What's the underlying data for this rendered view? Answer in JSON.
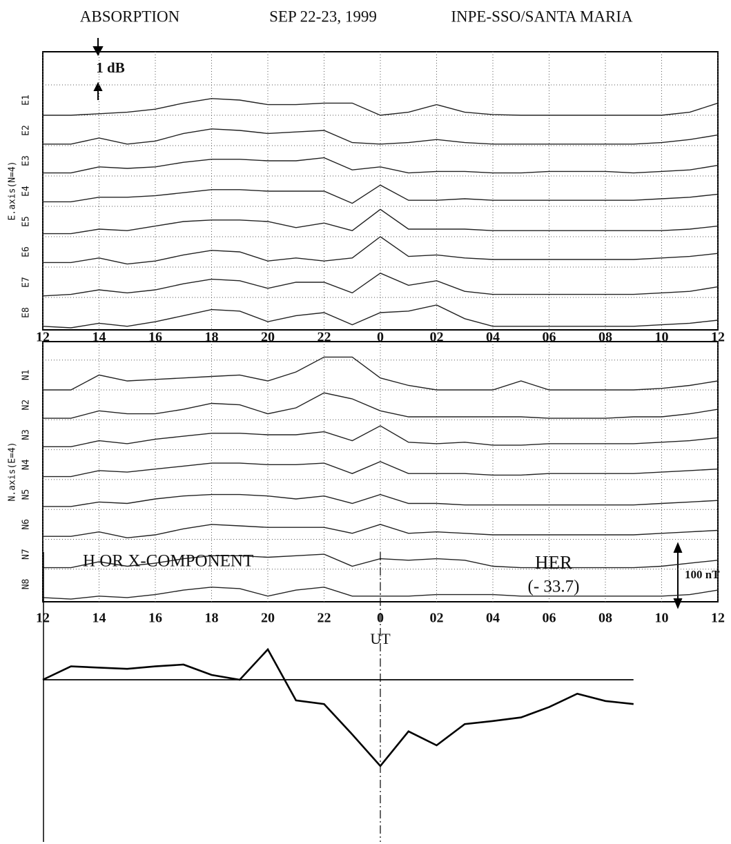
{
  "header": {
    "left": "ABSORPTION",
    "center": "SEP 22-23, 1999",
    "right": "INPE-SSO/SANTA MARIA"
  },
  "chart_data": [
    {
      "type": "line",
      "ylabel": "E.axis(N=4)",
      "annotation": "1 dB",
      "x": [
        12,
        13,
        14,
        15,
        16,
        17,
        18,
        19,
        20,
        21,
        22,
        23,
        24,
        25,
        26,
        27,
        28,
        29,
        30,
        31,
        32,
        33,
        34,
        35,
        36
      ],
      "xlim": [
        12,
        36
      ],
      "xticks": [
        12,
        14,
        16,
        18,
        20,
        22,
        {
          "value": 24,
          "label": "0"
        },
        {
          "value": 26,
          "label": "02"
        },
        {
          "value": 28,
          "label": "04"
        },
        {
          "value": 30,
          "label": "06"
        },
        {
          "value": 32,
          "label": "08"
        },
        {
          "value": 34,
          "label": "10"
        },
        {
          "value": 36,
          "label": "12"
        }
      ],
      "grid": true,
      "series": [
        {
          "name": "E1",
          "color": "#222",
          "values": [
            0,
            0,
            0.05,
            0.1,
            0.2,
            0.4,
            0.55,
            0.5,
            0.35,
            0.35,
            0.4,
            0.4,
            0,
            0.1,
            0.35,
            0.1,
            0.02,
            0,
            0,
            0,
            0,
            0,
            0,
            0.1,
            0.4
          ]
        },
        {
          "name": "E2",
          "color": "#222",
          "values": [
            0.05,
            0.05,
            0.25,
            0.05,
            0.15,
            0.4,
            0.55,
            0.5,
            0.4,
            0.45,
            0.5,
            0.1,
            0.05,
            0.1,
            0.2,
            0.1,
            0.05,
            0.05,
            0.05,
            0.05,
            0.05,
            0.05,
            0.1,
            0.2,
            0.35
          ]
        },
        {
          "name": "E3",
          "color": "#222",
          "values": [
            0.1,
            0.1,
            0.3,
            0.25,
            0.3,
            0.45,
            0.55,
            0.55,
            0.5,
            0.5,
            0.6,
            0.2,
            0.3,
            0.1,
            0.15,
            0.15,
            0.1,
            0.1,
            0.15,
            0.15,
            0.15,
            0.1,
            0.15,
            0.2,
            0.35
          ]
        },
        {
          "name": "E4",
          "color": "#222",
          "values": [
            0.15,
            0.15,
            0.3,
            0.3,
            0.35,
            0.45,
            0.55,
            0.55,
            0.5,
            0.5,
            0.5,
            0.1,
            0.7,
            0.2,
            0.2,
            0.25,
            0.2,
            0.2,
            0.2,
            0.2,
            0.2,
            0.2,
            0.25,
            0.3,
            0.4
          ]
        },
        {
          "name": "E5",
          "color": "#222",
          "values": [
            0.1,
            0.1,
            0.25,
            0.2,
            0.35,
            0.5,
            0.55,
            0.55,
            0.5,
            0.3,
            0.45,
            0.2,
            0.9,
            0.25,
            0.25,
            0.25,
            0.2,
            0.2,
            0.2,
            0.2,
            0.2,
            0.2,
            0.2,
            0.25,
            0.35
          ]
        },
        {
          "name": "E6",
          "color": "#222",
          "values": [
            0.15,
            0.15,
            0.3,
            0.1,
            0.2,
            0.4,
            0.55,
            0.5,
            0.2,
            0.3,
            0.2,
            0.3,
            1.0,
            0.35,
            0.4,
            0.3,
            0.25,
            0.25,
            0.25,
            0.25,
            0.25,
            0.25,
            0.3,
            0.35,
            0.45
          ]
        },
        {
          "name": "E7",
          "color": "#222",
          "values": [
            0.05,
            0.1,
            0.25,
            0.15,
            0.25,
            0.45,
            0.6,
            0.55,
            0.3,
            0.5,
            0.5,
            0.15,
            0.8,
            0.4,
            0.55,
            0.2,
            0.1,
            0.1,
            0.1,
            0.1,
            0.1,
            0.1,
            0.15,
            0.2,
            0.35
          ]
        },
        {
          "name": "E8",
          "color": "#222",
          "values": [
            0.05,
            0,
            0.15,
            0.05,
            0.2,
            0.4,
            0.6,
            0.55,
            0.2,
            0.4,
            0.5,
            0.1,
            0.5,
            0.55,
            0.75,
            0.3,
            0.05,
            0.05,
            0.05,
            0.05,
            0.05,
            0.05,
            0.1,
            0.15,
            0.25
          ]
        }
      ]
    },
    {
      "type": "line",
      "ylabel": "N.axis(E=4)",
      "xlabel": "UT",
      "x": [
        12,
        13,
        14,
        15,
        16,
        17,
        18,
        19,
        20,
        21,
        22,
        23,
        24,
        25,
        26,
        27,
        28,
        29,
        30,
        31,
        32,
        33,
        34,
        35,
        36
      ],
      "xlim": [
        12,
        36
      ],
      "xticks": [
        12,
        14,
        16,
        18,
        20,
        22,
        {
          "value": 24,
          "label": "0"
        },
        {
          "value": 26,
          "label": "02"
        },
        {
          "value": 28,
          "label": "04"
        },
        {
          "value": 30,
          "label": "06"
        },
        {
          "value": 32,
          "label": "08"
        },
        {
          "value": 34,
          "label": "10"
        },
        {
          "value": 36,
          "label": "12"
        }
      ],
      "grid": true,
      "series": [
        {
          "name": "N1",
          "color": "#222",
          "values": [
            0,
            0,
            0.5,
            0.3,
            0.35,
            0.4,
            0.45,
            0.5,
            0.3,
            0.6,
            1.1,
            1.1,
            0.4,
            0.15,
            0,
            0,
            0,
            0.3,
            0,
            0,
            0,
            0,
            0.05,
            0.15,
            0.3
          ]
        },
        {
          "name": "N2",
          "color": "#222",
          "values": [
            0.05,
            0.05,
            0.3,
            0.2,
            0.2,
            0.35,
            0.55,
            0.5,
            0.2,
            0.4,
            0.9,
            0.7,
            0.3,
            0.1,
            0.1,
            0.1,
            0.1,
            0.1,
            0.05,
            0.05,
            0.05,
            0.1,
            0.1,
            0.2,
            0.35
          ]
        },
        {
          "name": "N3",
          "color": "#222",
          "values": [
            0.1,
            0.1,
            0.3,
            0.2,
            0.35,
            0.45,
            0.55,
            0.55,
            0.5,
            0.5,
            0.6,
            0.3,
            0.8,
            0.25,
            0.2,
            0.25,
            0.15,
            0.15,
            0.2,
            0.2,
            0.2,
            0.2,
            0.25,
            0.3,
            0.4
          ]
        },
        {
          "name": "N4",
          "color": "#222",
          "values": [
            0.1,
            0.1,
            0.3,
            0.25,
            0.35,
            0.45,
            0.55,
            0.55,
            0.5,
            0.5,
            0.55,
            0.2,
            0.6,
            0.2,
            0.2,
            0.2,
            0.15,
            0.15,
            0.2,
            0.2,
            0.2,
            0.2,
            0.25,
            0.3,
            0.35
          ]
        },
        {
          "name": "N5",
          "color": "#222",
          "values": [
            0.1,
            0.1,
            0.25,
            0.2,
            0.35,
            0.45,
            0.5,
            0.5,
            0.45,
            0.35,
            0.45,
            0.2,
            0.5,
            0.2,
            0.2,
            0.15,
            0.15,
            0.15,
            0.15,
            0.15,
            0.15,
            0.15,
            0.2,
            0.25,
            0.3
          ]
        },
        {
          "name": "N6",
          "color": "#222",
          "values": [
            0.1,
            0.1,
            0.25,
            0.05,
            0.15,
            0.35,
            0.5,
            0.45,
            0.4,
            0.4,
            0.4,
            0.2,
            0.5,
            0.2,
            0.25,
            0.2,
            0.15,
            0.15,
            0.15,
            0.15,
            0.15,
            0.15,
            0.2,
            0.25,
            0.3
          ]
        },
        {
          "name": "N7",
          "color": "#222",
          "values": [
            0.05,
            0.05,
            0.25,
            0.1,
            0.2,
            0.35,
            0.45,
            0.45,
            0.4,
            0.45,
            0.5,
            0.1,
            0.35,
            0.3,
            0.35,
            0.3,
            0.1,
            0.05,
            0.05,
            0.05,
            0.05,
            0.05,
            0.1,
            0.2,
            0.3
          ]
        },
        {
          "name": "N8",
          "color": "#222",
          "values": [
            0.05,
            0,
            0.1,
            0.05,
            0.15,
            0.3,
            0.4,
            0.35,
            0.1,
            0.3,
            0.4,
            0.1,
            0.1,
            0.1,
            0.15,
            0.15,
            0.15,
            0.1,
            0.1,
            0.1,
            0.1,
            0.1,
            0.1,
            0.15,
            0.3
          ]
        }
      ]
    },
    {
      "type": "line",
      "title": "H OR X-COMPONENT",
      "subtitle": "(- 33.7)",
      "scale_label": "100 nT",
      "x": [
        12,
        13,
        14,
        15,
        16,
        17,
        18,
        19,
        20,
        21,
        22,
        23,
        24,
        25,
        26,
        27,
        28,
        29,
        30,
        31,
        32,
        33
      ],
      "xlim": [
        12,
        36
      ],
      "vline": 24,
      "series": [
        {
          "name": "HER",
          "color": "#000",
          "values": [
            0,
            22,
            20,
            18,
            22,
            25,
            8,
            0,
            50,
            -34,
            -40,
            -90,
            -142,
            -85,
            -108,
            -73,
            -68,
            -62,
            -45,
            -23,
            -35,
            -40
          ]
        }
      ]
    }
  ]
}
